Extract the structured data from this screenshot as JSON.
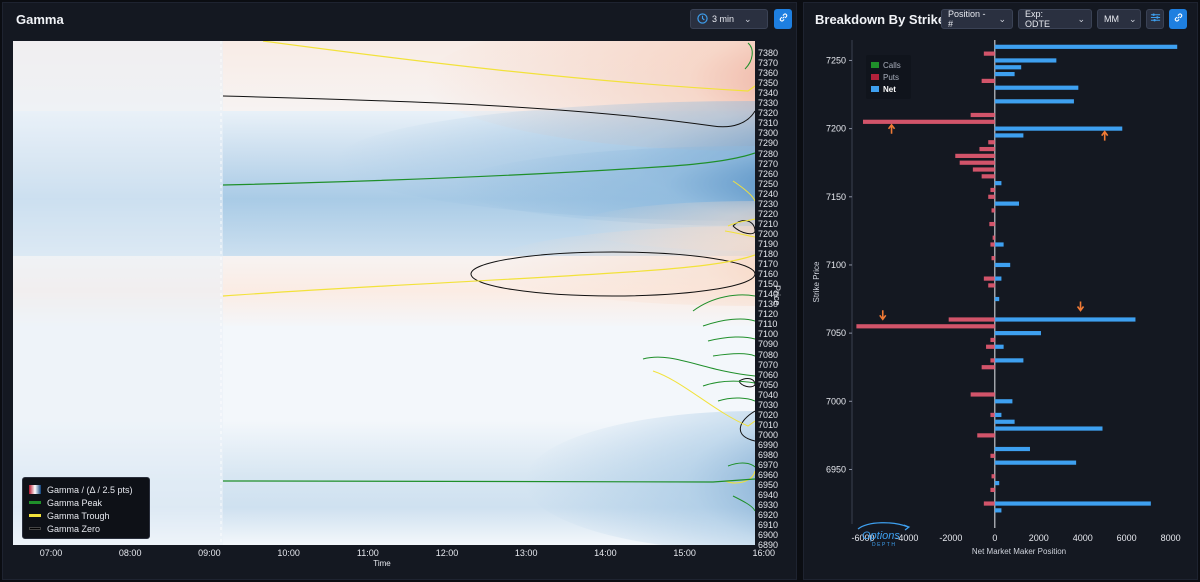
{
  "gamma_panel": {
    "title": "Gamma",
    "interval_label": "3 min",
    "icons": {
      "interval": "clock-icon",
      "dropdown": "chevron-down-icon",
      "link": "link-icon"
    },
    "price_axis_label": "Price",
    "time_axis_label": "Time",
    "price_ticks": [
      "7380",
      "7370",
      "7360",
      "7350",
      "7340",
      "7330",
      "7320",
      "7310",
      "7300",
      "7290",
      "7280",
      "7270",
      "7260",
      "7250",
      "7240",
      "7230",
      "7220",
      "7210",
      "7200",
      "7190",
      "7180",
      "7170",
      "7160",
      "7150",
      "7140",
      "7130",
      "7120",
      "7110",
      "7100",
      "7090",
      "7080",
      "7070",
      "7060",
      "7050",
      "7040",
      "7030",
      "7020",
      "7010",
      "7000",
      "6990",
      "6980",
      "6970",
      "6960",
      "6950",
      "6940",
      "6930",
      "6920",
      "6910",
      "6900",
      "6890"
    ],
    "time_ticks": [
      "07:00",
      "08:00",
      "09:00",
      "10:00",
      "11:00",
      "12:00",
      "13:00",
      "14:00",
      "15:00",
      "16:00"
    ],
    "legend": [
      {
        "label": "Gamma / (Δ / 2.5 pts)",
        "kind": "gradient"
      },
      {
        "label": "Gamma Peak",
        "color": "#1f8f2a"
      },
      {
        "label": "Gamma Trough",
        "color": "#f2e23a"
      },
      {
        "label": "Gamma Zero",
        "color": "#111111"
      }
    ]
  },
  "strike_panel": {
    "title": "Breakdown By Strike",
    "position_label": "Position - #",
    "expiry_label": "Exp: ODTE",
    "mm_label": "MM",
    "icons": {
      "settings": "sliders-icon",
      "link": "link-icon",
      "dropdown": "chevron-down-icon"
    },
    "legend": [
      {
        "label": "Calls",
        "color": "#1f8f2a"
      },
      {
        "label": "Puts",
        "color": "#b3213a"
      },
      {
        "label": "Net",
        "color": "#3ea0f0"
      }
    ],
    "watermark": "Options DEPTH"
  },
  "chart_data": {
    "type": "bar",
    "orientation": "horizontal",
    "title": "Breakdown By Strike",
    "xlabel": "Net Market Maker Position",
    "ylabel": "Strike Price",
    "xlim": [
      -6500,
      8700
    ],
    "ylim": [
      6910,
      7265
    ],
    "x_ticks": [
      "-6000",
      "-4000",
      "-2000",
      "0",
      "2000",
      "4000",
      "6000",
      "8000"
    ],
    "y_ticks": [
      "7250",
      "7200",
      "7150",
      "7100",
      "7050",
      "7000",
      "6950"
    ],
    "colors": {
      "puts": "#d2546a",
      "net": "#3ea0f0"
    },
    "puts": [
      {
        "strike": 7255,
        "value": -500
      },
      {
        "strike": 7235,
        "value": -600
      },
      {
        "strike": 7210,
        "value": -1100
      },
      {
        "strike": 7205,
        "value": -6000
      },
      {
        "strike": 7190,
        "value": -300
      },
      {
        "strike": 7185,
        "value": -700
      },
      {
        "strike": 7180,
        "value": -1800
      },
      {
        "strike": 7175,
        "value": -1600
      },
      {
        "strike": 7170,
        "value": -1000
      },
      {
        "strike": 7165,
        "value": -600
      },
      {
        "strike": 7155,
        "value": -200
      },
      {
        "strike": 7150,
        "value": -300
      },
      {
        "strike": 7140,
        "value": -150
      },
      {
        "strike": 7130,
        "value": -250
      },
      {
        "strike": 7120,
        "value": -100
      },
      {
        "strike": 7115,
        "value": -200
      },
      {
        "strike": 7105,
        "value": -150
      },
      {
        "strike": 7090,
        "value": -500
      },
      {
        "strike": 7085,
        "value": -300
      },
      {
        "strike": 7060,
        "value": -2100
      },
      {
        "strike": 7055,
        "value": -6300
      },
      {
        "strike": 7045,
        "value": -200
      },
      {
        "strike": 7040,
        "value": -400
      },
      {
        "strike": 7030,
        "value": -200
      },
      {
        "strike": 7025,
        "value": -600
      },
      {
        "strike": 7005,
        "value": -1100
      },
      {
        "strike": 6990,
        "value": -200
      },
      {
        "strike": 6975,
        "value": -800
      },
      {
        "strike": 6960,
        "value": -200
      },
      {
        "strike": 6945,
        "value": -150
      },
      {
        "strike": 6935,
        "value": -200
      },
      {
        "strike": 6925,
        "value": -500
      }
    ],
    "net": [
      {
        "strike": 7260,
        "value": 8300
      },
      {
        "strike": 7250,
        "value": 2800
      },
      {
        "strike": 7245,
        "value": 1200
      },
      {
        "strike": 7240,
        "value": 900
      },
      {
        "strike": 7230,
        "value": 3800
      },
      {
        "strike": 7220,
        "value": 3600
      },
      {
        "strike": 7200,
        "value": 5800
      },
      {
        "strike": 7195,
        "value": 1300
      },
      {
        "strike": 7160,
        "value": 300
      },
      {
        "strike": 7145,
        "value": 1100
      },
      {
        "strike": 7115,
        "value": 400
      },
      {
        "strike": 7100,
        "value": 700
      },
      {
        "strike": 7090,
        "value": 300
      },
      {
        "strike": 7075,
        "value": 200
      },
      {
        "strike": 7060,
        "value": 6400
      },
      {
        "strike": 7050,
        "value": 2100
      },
      {
        "strike": 7040,
        "value": 400
      },
      {
        "strike": 7030,
        "value": 1300
      },
      {
        "strike": 7000,
        "value": 800
      },
      {
        "strike": 6990,
        "value": 300
      },
      {
        "strike": 6985,
        "value": 900
      },
      {
        "strike": 6980,
        "value": 4900
      },
      {
        "strike": 6965,
        "value": 1600
      },
      {
        "strike": 6955,
        "value": 3700
      },
      {
        "strike": 6940,
        "value": 200
      },
      {
        "strike": 6925,
        "value": 7100
      },
      {
        "strike": 6920,
        "value": 300
      }
    ],
    "grid": false,
    "legend_position": "top-left"
  }
}
